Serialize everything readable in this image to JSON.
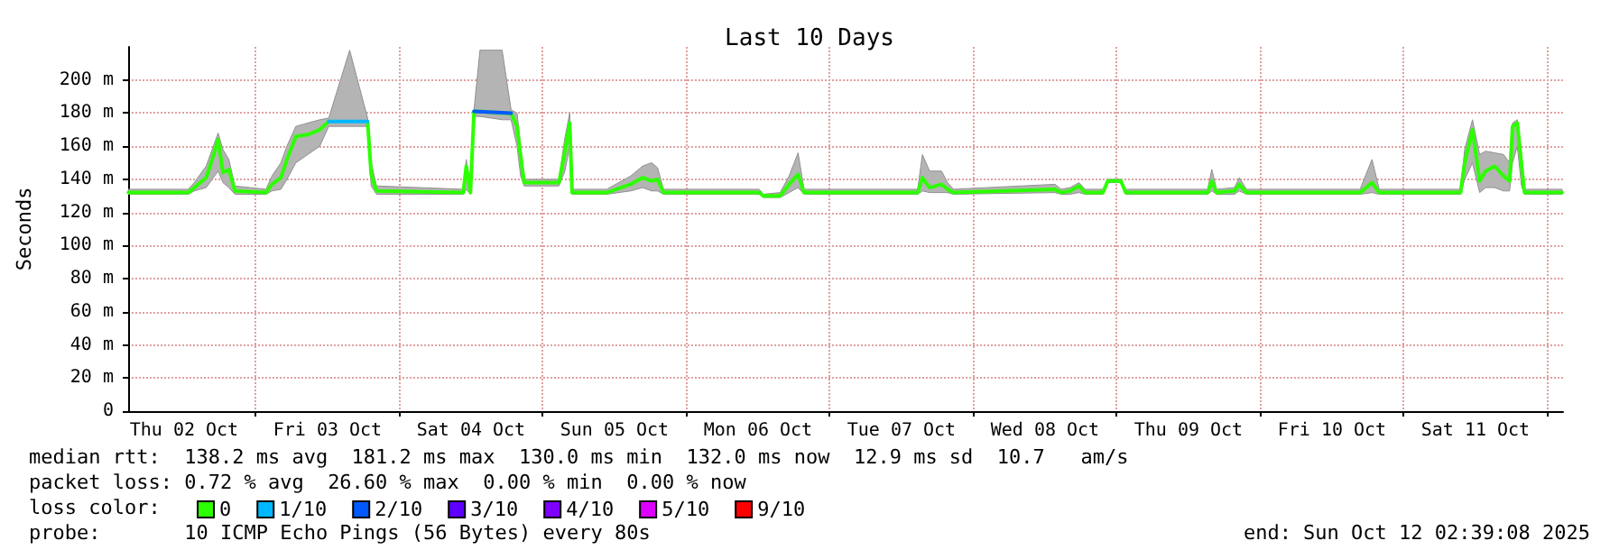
{
  "chart_data": {
    "type": "line",
    "title": "Last 10 Days",
    "ylabel": "Seconds",
    "annotations": [
      "median rtt:  138.2 ms avg  181.2 ms max  130.0 ms min  132.0 ms now  12.9 ms sd  10.7   am/s",
      "packet loss: 0.72 % avg  26.60 % max  0.00 % min  0.00 % now",
      "loss color:",
      "probe:       10 ICMP Echo Pings (56 Bytes) every 80s",
      "end: Sun Oct 12 02:39:08 2025"
    ],
    "xlim": [
      "2025-10-02T02:39",
      "2025-10-12T02:39"
    ],
    "xticks": [
      {
        "value": "2025-10-02T12:00",
        "label": "Thu 02 Oct"
      },
      {
        "value": "2025-10-03T00:00",
        "label": null
      },
      {
        "value": "2025-10-03T12:00",
        "label": "Fri 03 Oct"
      },
      {
        "value": "2025-10-04T00:00",
        "label": null
      },
      {
        "value": "2025-10-04T12:00",
        "label": "Sat 04 Oct"
      },
      {
        "value": "2025-10-05T00:00",
        "label": null
      },
      {
        "value": "2025-10-05T12:00",
        "label": "Sun 05 Oct"
      },
      {
        "value": "2025-10-06T00:00",
        "label": null
      },
      {
        "value": "2025-10-06T12:00",
        "label": "Mon 06 Oct"
      },
      {
        "value": "2025-10-07T00:00",
        "label": null
      },
      {
        "value": "2025-10-07T12:00",
        "label": "Tue 07 Oct"
      },
      {
        "value": "2025-10-08T00:00",
        "label": null
      },
      {
        "value": "2025-10-08T12:00",
        "label": "Wed 08 Oct"
      },
      {
        "value": "2025-10-09T00:00",
        "label": null
      },
      {
        "value": "2025-10-09T12:00",
        "label": "Thu 09 Oct"
      },
      {
        "value": "2025-10-10T00:00",
        "label": null
      },
      {
        "value": "2025-10-10T12:00",
        "label": "Fri 10 Oct"
      },
      {
        "value": "2025-10-11T00:00",
        "label": null
      },
      {
        "value": "2025-10-11T12:00",
        "label": "Sat 11 Oct"
      },
      {
        "value": "2025-10-12T00:00",
        "label": null
      }
    ],
    "ylim": [
      0,
      220
    ],
    "yticks": [
      0,
      {
        "value": 20,
        "label": "20 m"
      },
      {
        "value": 40,
        "label": "40 m"
      },
      {
        "value": 60,
        "label": "60 m"
      },
      {
        "value": 80,
        "label": "80 m"
      },
      {
        "value": 100,
        "label": "100 m"
      },
      {
        "value": 120,
        "label": "120 m"
      },
      {
        "value": 140,
        "label": "140 m"
      },
      {
        "value": 160,
        "label": "160 m"
      },
      {
        "value": 180,
        "label": "180 m"
      },
      {
        "value": 200,
        "label": "200 m"
      }
    ],
    "grid": true,
    "legend": "bottom left",
    "marker": "none",
    "line_style": "solid",
    "series": [
      {
        "name": "0",
        "color": "#2cff00",
        "x": [
          "2025-10-02T02:42",
          "2025-10-02T12:42",
          "2025-10-02T13:42",
          "2025-10-02T15:42",
          "2025-10-02T16:42",
          "2025-10-02T17:42",
          "2025-10-02T18:30",
          "2025-10-02T19:30",
          "2025-10-02T20:30",
          "2025-10-03T01:42",
          "2025-10-03T02:42",
          "2025-10-03T04:12",
          "2025-10-03T05:12",
          "2025-10-03T06:42",
          "2025-10-03T08:42",
          "2025-10-03T10:42",
          "2025-10-03T12:12",
          "2025-10-03T15:42",
          "2025-10-03T18:42",
          "2025-10-03T19:18",
          "2025-10-03T20:12",
          "2025-10-04T10:42",
          "2025-10-04T11:12",
          "2025-10-04T11:54",
          "2025-10-04T12:30",
          "2025-10-04T13:30",
          "2025-10-04T17:12",
          "2025-10-04T18:42",
          "2025-10-04T19:42",
          "2025-10-04T20:18",
          "2025-10-04T20:54",
          "2025-10-05T02:42",
          "2025-10-05T03:42",
          "2025-10-05T04:30",
          "2025-10-05T04:54",
          "2025-10-05T10:42",
          "2025-10-05T14:42",
          "2025-10-05T16:42",
          "2025-10-05T18:12",
          "2025-10-05T19:12",
          "2025-10-05T20:12",
          "2025-10-06T12:12",
          "2025-10-06T12:54",
          "2025-10-06T15:42",
          "2025-10-06T17:12",
          "2025-10-06T18:42",
          "2025-10-06T19:42",
          "2025-10-07T14:42",
          "2025-10-07T15:30",
          "2025-10-07T16:42",
          "2025-10-07T18:42",
          "2025-10-07T19:42",
          "2025-10-07T20:42",
          "2025-10-08T13:42",
          "2025-10-08T14:42",
          "2025-10-08T16:12",
          "2025-10-08T17:42",
          "2025-10-08T18:42",
          "2025-10-08T21:42",
          "2025-10-08T22:30",
          "2025-10-09T00:42",
          "2025-10-09T01:30",
          "2025-10-09T15:12",
          "2025-10-09T15:54",
          "2025-10-09T16:42",
          "2025-10-09T19:42",
          "2025-10-09T20:30",
          "2025-10-09T21:42",
          "2025-10-10T16:42",
          "2025-10-10T18:42",
          "2025-10-10T19:54",
          "2025-10-11T09:30",
          "2025-10-11T10:12",
          "2025-10-11T11:30",
          "2025-10-11T12:42",
          "2025-10-11T13:42",
          "2025-10-11T15:12",
          "2025-10-11T16:42",
          "2025-10-11T17:42",
          "2025-10-11T18:12",
          "2025-10-11T19:00",
          "2025-10-11T19:42",
          "2025-10-11T20:12",
          "2025-10-12T02:30"
        ],
        "values": [
          132,
          132,
          135,
          141,
          152,
          164,
          144,
          146,
          133,
          132,
          137,
          141,
          152,
          166,
          167,
          170,
          175,
          null,
          175,
          143,
          133,
          132,
          148,
          132,
          181,
          181,
          180,
          180,
          172,
          154,
          138,
          138,
          157,
          174,
          132,
          132,
          137,
          141,
          139,
          140,
          132,
          132,
          130,
          130,
          137,
          143,
          132,
          132,
          141,
          135,
          137,
          134,
          132,
          134,
          132,
          133,
          136,
          132,
          132,
          139,
          139,
          132,
          132,
          139,
          132,
          133,
          137,
          132,
          132,
          138,
          132,
          132,
          150,
          170,
          139,
          145,
          148,
          142,
          139,
          172,
          174,
          149,
          132,
          132
        ],
        "lower": [
          131,
          131,
          133,
          135,
          140,
          145,
          138,
          135,
          131,
          131,
          133,
          134,
          140,
          150,
          155,
          160,
          172,
          172,
          172,
          136,
          131,
          131,
          134,
          131,
          178,
          178,
          176,
          176,
          160,
          142,
          136,
          136,
          145,
          160,
          131,
          131,
          133,
          135,
          133,
          133,
          131,
          131,
          129,
          129,
          132,
          135,
          131,
          131,
          133,
          132,
          132,
          132,
          131,
          132,
          131,
          131,
          132,
          131,
          131,
          138,
          138,
          131,
          131,
          133,
          131,
          131,
          133,
          131,
          131,
          132,
          131,
          131,
          140,
          150,
          132,
          135,
          135,
          133,
          133,
          150,
          160,
          136,
          131,
          131
        ],
        "upper": [
          134,
          134,
          138,
          148,
          158,
          168,
          158,
          152,
          136,
          134,
          142,
          150,
          160,
          172,
          174,
          176,
          177,
          218,
          177,
          150,
          136,
          134,
          152,
          134,
          182,
          218,
          218,
          182,
          180,
          160,
          140,
          140,
          165,
          180,
          134,
          134,
          142,
          148,
          150,
          147,
          134,
          134,
          131,
          132,
          142,
          156,
          134,
          134,
          155,
          145,
          145,
          138,
          134,
          137,
          134,
          135,
          138,
          134,
          134,
          140,
          140,
          134,
          134,
          146,
          134,
          135,
          141,
          134,
          134,
          152,
          134,
          134,
          158,
          176,
          155,
          157,
          156,
          155,
          150,
          174,
          176,
          156,
          134,
          134
        ]
      },
      {
        "name": "1/10",
        "color": "#00b8ff",
        "x": [
          "2025-10-03T12:12",
          "2025-10-03T18:42"
        ],
        "values": [
          175,
          175
        ]
      },
      {
        "name": "2/10",
        "color": "#0059ff",
        "x": [
          "2025-10-04T12:30",
          "2025-10-04T18:42"
        ],
        "values": [
          181,
          180
        ]
      },
      {
        "name": "3/10",
        "color": "#5e00ff"
      },
      {
        "name": "4/10",
        "color": "#7e00ff"
      },
      {
        "name": "5/10",
        "color": "#dd00ff"
      },
      {
        "name": "9/10",
        "color": "#ff0000"
      }
    ]
  }
}
